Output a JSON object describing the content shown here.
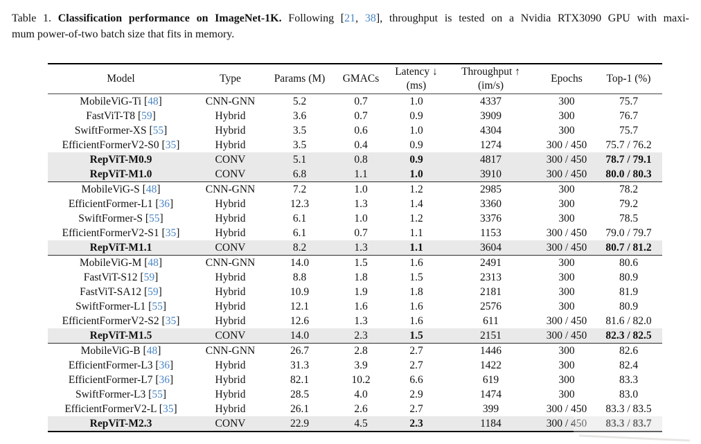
{
  "theme": {
    "link_color": "#4a86c4",
    "highlight_row_bg": "#e9e9e9",
    "text_color": "#111111"
  },
  "caption": {
    "line1_segments": [
      {
        "text": "Table 1. ",
        "style": "normal"
      },
      {
        "text": "Classification performance on ImageNet-1K.",
        "style": "bold"
      },
      {
        "text": " Following [",
        "style": "normal"
      },
      {
        "text": "21",
        "style": "link"
      },
      {
        "text": ", ",
        "style": "normal"
      },
      {
        "text": "38",
        "style": "link"
      },
      {
        "text": "], throughput is tested on a Nvidia RTX3090 GPU with maxi-",
        "style": "normal"
      }
    ],
    "line2": "mum power-of-two batch size that fits in memory."
  },
  "table": {
    "columns": [
      {
        "key": "model",
        "label": "Model"
      },
      {
        "key": "type",
        "label": "Type"
      },
      {
        "key": "params",
        "label": "Params (M)"
      },
      {
        "key": "gmacs",
        "label": "GMACs"
      },
      {
        "key": "latency",
        "label": "Latency",
        "arrow": "↓",
        "sub": "(ms)"
      },
      {
        "key": "throughput",
        "label": "Throughput",
        "arrow": "↑",
        "sub": "(im/s)"
      },
      {
        "key": "epochs",
        "label": "Epochs"
      },
      {
        "key": "top1",
        "label": "Top-1 (%)"
      }
    ],
    "groups": [
      {
        "rows": [
          {
            "model": "MobileViG-Ti",
            "cite": "48",
            "type": "CNN-GNN",
            "params": "5.2",
            "gmacs": "0.7",
            "latency": "1.0",
            "throughput": "4337",
            "epochs": "300",
            "top1": "75.7",
            "highlight": false
          },
          {
            "model": "FastViT-T8",
            "cite": "59",
            "type": "Hybrid",
            "params": "3.6",
            "gmacs": "0.7",
            "latency": "0.9",
            "throughput": "3909",
            "epochs": "300",
            "top1": "76.7",
            "highlight": false
          },
          {
            "model": "SwiftFormer-XS",
            "cite": "55",
            "type": "Hybrid",
            "params": "3.5",
            "gmacs": "0.6",
            "latency": "1.0",
            "throughput": "4304",
            "epochs": "300",
            "top1": "75.7",
            "highlight": false
          },
          {
            "model": "EfficientFormerV2-S0",
            "cite": "35",
            "type": "Hybrid",
            "params": "3.5",
            "gmacs": "0.4",
            "latency": "0.9",
            "throughput": "1274",
            "epochs": "300 / 450",
            "top1": "75.7 / 76.2",
            "highlight": false
          },
          {
            "model": "RepViT-M0.9",
            "cite": null,
            "type": "CONV",
            "params": "5.1",
            "gmacs": "0.8",
            "latency": "0.9",
            "throughput": "4817",
            "epochs": "300 / 450",
            "top1": "78.7 / 79.1",
            "highlight": true
          },
          {
            "model": "RepViT-M1.0",
            "cite": null,
            "type": "CONV",
            "params": "6.8",
            "gmacs": "1.1",
            "latency": "1.0",
            "throughput": "3910",
            "epochs": "300 / 450",
            "top1": "80.0 / 80.3",
            "highlight": true
          }
        ]
      },
      {
        "rows": [
          {
            "model": "MobileViG-S",
            "cite": "48",
            "type": "CNN-GNN",
            "params": "7.2",
            "gmacs": "1.0",
            "latency": "1.2",
            "throughput": "2985",
            "epochs": "300",
            "top1": "78.2",
            "highlight": false
          },
          {
            "model": "EfficientFormer-L1",
            "cite": "36",
            "type": "Hybrid",
            "params": "12.3",
            "gmacs": "1.3",
            "latency": "1.4",
            "throughput": "3360",
            "epochs": "300",
            "top1": "79.2",
            "highlight": false
          },
          {
            "model": "SwiftFormer-S",
            "cite": "55",
            "type": "Hybrid",
            "params": "6.1",
            "gmacs": "1.0",
            "latency": "1.2",
            "throughput": "3376",
            "epochs": "300",
            "top1": "78.5",
            "highlight": false
          },
          {
            "model": "EfficientFormerV2-S1",
            "cite": "35",
            "type": "Hybrid",
            "params": "6.1",
            "gmacs": "0.7",
            "latency": "1.1",
            "throughput": "1153",
            "epochs": "300 / 450",
            "top1": "79.0 / 79.7",
            "highlight": false
          },
          {
            "model": "RepViT-M1.1",
            "cite": null,
            "type": "CONV",
            "params": "8.2",
            "gmacs": "1.3",
            "latency": "1.1",
            "throughput": "3604",
            "epochs": "300 / 450",
            "top1": "80.7 / 81.2",
            "highlight": true
          }
        ]
      },
      {
        "rows": [
          {
            "model": "MobileViG-M",
            "cite": "48",
            "type": "CNN-GNN",
            "params": "14.0",
            "gmacs": "1.5",
            "latency": "1.6",
            "throughput": "2491",
            "epochs": "300",
            "top1": "80.6",
            "highlight": false
          },
          {
            "model": "FastViT-S12",
            "cite": "59",
            "type": "Hybrid",
            "params": "8.8",
            "gmacs": "1.8",
            "latency": "1.5",
            "throughput": "2313",
            "epochs": "300",
            "top1": "80.9",
            "highlight": false
          },
          {
            "model": "FastViT-SA12",
            "cite": "59",
            "type": "Hybrid",
            "params": "10.9",
            "gmacs": "1.9",
            "latency": "1.8",
            "throughput": "2181",
            "epochs": "300",
            "top1": "81.9",
            "highlight": false
          },
          {
            "model": "SwiftFormer-L1",
            "cite": "55",
            "type": "Hybrid",
            "params": "12.1",
            "gmacs": "1.6",
            "latency": "1.6",
            "throughput": "2576",
            "epochs": "300",
            "top1": "80.9",
            "highlight": false
          },
          {
            "model": "EfficientFormerV2-S2",
            "cite": "35",
            "type": "Hybrid",
            "params": "12.6",
            "gmacs": "1.3",
            "latency": "1.6",
            "throughput": "611",
            "epochs": "300 / 450",
            "top1": "81.6 / 82.0",
            "highlight": false
          },
          {
            "model": "RepViT-M1.5",
            "cite": null,
            "type": "CONV",
            "params": "14.0",
            "gmacs": "2.3",
            "latency": "1.5",
            "throughput": "2151",
            "epochs": "300 / 450",
            "top1": "82.3 / 82.5",
            "highlight": true
          }
        ]
      },
      {
        "rows": [
          {
            "model": "MobileViG-B",
            "cite": "48",
            "type": "CNN-GNN",
            "params": "26.7",
            "gmacs": "2.8",
            "latency": "2.7",
            "throughput": "1446",
            "epochs": "300",
            "top1": "82.6",
            "highlight": false
          },
          {
            "model": "EfficientFormer-L3",
            "cite": "36",
            "type": "Hybrid",
            "params": "31.3",
            "gmacs": "3.9",
            "latency": "2.7",
            "throughput": "1422",
            "epochs": "300",
            "top1": "82.4",
            "highlight": false
          },
          {
            "model": "EfficientFormer-L7",
            "cite": "36",
            "type": "Hybrid",
            "params": "82.1",
            "gmacs": "10.2",
            "latency": "6.6",
            "throughput": "619",
            "epochs": "300",
            "top1": "83.3",
            "highlight": false
          },
          {
            "model": "SwiftFormer-L3",
            "cite": "55",
            "type": "Hybrid",
            "params": "28.5",
            "gmacs": "4.0",
            "latency": "2.9",
            "throughput": "1474",
            "epochs": "300",
            "top1": "83.0",
            "highlight": false
          },
          {
            "model": "EfficientFormerV2-L",
            "cite": "35",
            "type": "Hybrid",
            "params": "26.1",
            "gmacs": "2.6",
            "latency": "2.7",
            "throughput": "399",
            "epochs": "300 / 450",
            "top1": "83.3 / 83.5",
            "highlight": false
          },
          {
            "model": "RepViT-M2.3",
            "cite": null,
            "type": "CONV",
            "params": "22.9",
            "gmacs": "4.5",
            "latency": "2.3",
            "throughput": "1184",
            "epochs": "300 / 450",
            "top1": "83.3 / 83.7",
            "highlight": true
          }
        ]
      }
    ]
  }
}
